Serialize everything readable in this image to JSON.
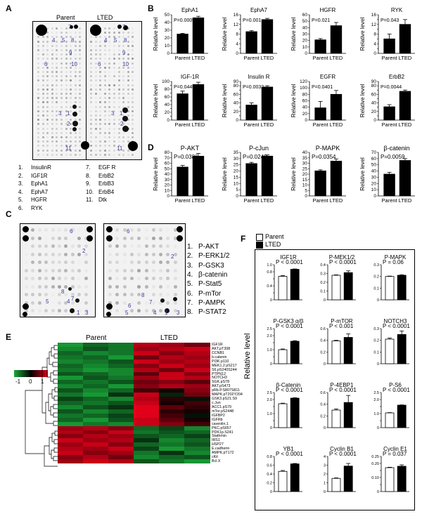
{
  "panelA": {
    "label": "A",
    "headers": [
      "Parent",
      "LTED"
    ],
    "left_numbers": [
      "7",
      "4",
      "5",
      "8",
      "9",
      "6",
      "10",
      "3",
      "1",
      "2",
      "11"
    ],
    "right_numbers": [
      "7",
      "4",
      "5",
      "8",
      "9",
      "6",
      "10",
      "3",
      "1",
      "2",
      "11"
    ],
    "key_col1": [
      "1.",
      "2.",
      "3.",
      "4.",
      "5.",
      "6."
    ],
    "key_col1_names": [
      "InsulinR",
      "IGF1R",
      "EphA1",
      "EphA7",
      "HGFR",
      "RYK"
    ],
    "key_col2": [
      "7.",
      "8.",
      "9.",
      "10.",
      "11."
    ],
    "key_col2_names": [
      "EGF R",
      "ErbB2",
      "ErbB3",
      "ErbB4",
      "Dtk"
    ]
  },
  "panelB": {
    "label": "B",
    "charts": [
      {
        "title": "EphA1",
        "p": "P=0.0009",
        "ylim": [
          0,
          50
        ],
        "ticks": [
          "0",
          "10",
          "20",
          "30",
          "40",
          "50"
        ],
        "values": [
          25,
          46
        ],
        "err": [
          1,
          2
        ]
      },
      {
        "title": "EphA7",
        "p": "P=0.001",
        "ylim": [
          0,
          16
        ],
        "ticks": [
          "0",
          "2",
          "4",
          "6",
          "8",
          "10",
          "12",
          "14",
          "16"
        ],
        "values": [
          9,
          14
        ],
        "err": [
          0.4,
          0.5
        ]
      },
      {
        "title": "HGFR",
        "p": "P=0.021",
        "ylim": [
          0,
          60
        ],
        "ticks": [
          "0",
          "10",
          "20",
          "30",
          "40",
          "50",
          "60"
        ],
        "values": [
          21,
          43
        ],
        "err": [
          2,
          5
        ]
      },
      {
        "title": "RYK",
        "p": "P=0.043",
        "ylim": [
          0,
          16
        ],
        "ticks": [
          "0",
          "2",
          "4",
          "6",
          "8",
          "10",
          "12",
          "14",
          "16"
        ],
        "values": [
          6,
          12
        ],
        "err": [
          2,
          2
        ]
      },
      {
        "title": "IGF-1R",
        "p": "P=0.0445",
        "ylim": [
          0,
          100
        ],
        "ticks": [
          "0",
          "10",
          "20",
          "30",
          "40",
          "50",
          "60",
          "70",
          "80",
          "90",
          "100"
        ],
        "values": [
          68,
          92
        ],
        "err": [
          7,
          6
        ]
      },
      {
        "title": "Insulin R",
        "p": "P=0.0032",
        "ylim": [
          0,
          90
        ],
        "ticks": [
          "0",
          "10",
          "20",
          "30",
          "40",
          "50",
          "60",
          "70",
          "80",
          "90"
        ],
        "values": [
          35,
          77
        ],
        "err": [
          5,
          3
        ]
      },
      {
        "title": "EGFR",
        "p": "P=0.0401",
        "ylim": [
          0,
          120
        ],
        "ticks": [
          "0",
          "20",
          "40",
          "60",
          "80",
          "100",
          "120"
        ],
        "values": [
          38,
          80
        ],
        "err": [
          20,
          12
        ]
      },
      {
        "title": "ErbB2",
        "p": "P=0.0044",
        "ylim": [
          0,
          90
        ],
        "ticks": [
          "0",
          "10",
          "20",
          "30",
          "40",
          "50",
          "60",
          "70",
          "80",
          "90"
        ],
        "values": [
          31,
          67
        ],
        "err": [
          5,
          3
        ]
      }
    ],
    "ylabel": "Relative level",
    "xcats": [
      "Parent",
      "LTED"
    ]
  },
  "panelC": {
    "label": "C",
    "left_numbers": [
      "6",
      "2",
      "8",
      "5",
      "4",
      "1",
      "3",
      "7"
    ],
    "right_numbers": [
      "6",
      "2",
      "8",
      "6",
      "7",
      "5",
      "4",
      "1",
      "3"
    ],
    "key_nums": [
      "1.",
      "2.",
      "3.",
      "4.",
      "5.",
      "6.",
      "7.",
      "8."
    ],
    "key_names": [
      "P-AKT",
      "P-ERK1/2",
      "P-GSK3",
      "β-catenin",
      "P-Stat5",
      "P-mTor",
      "P-AMPK",
      "P-STAT2"
    ]
  },
  "panelD": {
    "label": "D",
    "charts": [
      {
        "title": "P-AKT",
        "p": "P=0.0386",
        "ylim": [
          0,
          80
        ],
        "ticks": [
          "0",
          "10",
          "20",
          "30",
          "40",
          "50",
          "60",
          "70",
          "80"
        ],
        "values": [
          53,
          73
        ],
        "err": [
          3,
          5
        ]
      },
      {
        "title": "P-cJun",
        "p": "P=0.0249",
        "ylim": [
          0,
          35
        ],
        "ticks": [
          "0",
          "5",
          "10",
          "15",
          "20",
          "25",
          "30",
          "35"
        ],
        "values": [
          26,
          32
        ],
        "err": [
          1,
          1
        ]
      },
      {
        "title": "P-MAPK",
        "p": "P=0.0354",
        "ylim": [
          0,
          40
        ],
        "ticks": [
          "0",
          "5",
          "10",
          "15",
          "20",
          "25",
          "30",
          "35",
          "40"
        ],
        "values": [
          23,
          32
        ],
        "err": [
          1,
          2
        ]
      },
      {
        "title": "β-catenin",
        "p": "P=0.0059",
        "ylim": [
          0,
          70
        ],
        "ticks": [
          "0",
          "10",
          "20",
          "30",
          "40",
          "50",
          "60",
          "70"
        ],
        "values": [
          35,
          57
        ],
        "err": [
          3,
          3
        ]
      }
    ],
    "ylabel": "Relative level",
    "xcats": [
      "Parent",
      "LTED"
    ]
  },
  "panelE": {
    "label": "E",
    "headers": [
      "Parent",
      "LTED"
    ],
    "scale_ticks": [
      "-1",
      "0",
      "1"
    ],
    "genes": [
      "IGF1R",
      "AKT.pT308",
      "CCNB1",
      "b.catenin",
      "PI3K.p110",
      "MEK1.2.pS217",
      "S6.pS240S244",
      "PTPN12",
      "NOTCH3",
      "SGK.pS78",
      "AKT.pS473",
      "pRb.P.S807S811",
      "MAPK.pT202Y204",
      "GSK3.pS21.S9",
      "c.Jun",
      "ACC1.pS79",
      "mTor.pS2448",
      "IGFBP2",
      "IGFRb",
      "caveolin.1",
      "PKC.pS657",
      "PDK1p.S241",
      "Stathmin",
      "IRS1",
      "HSP27",
      "E.cadherin",
      "AMPK.pT172",
      "cKit",
      "Bcl.X"
    ],
    "matrix": [
      [
        -0.9,
        -0.6,
        -0.7,
        0.8,
        0.7,
        0.5
      ],
      [
        -0.8,
        -0.5,
        -0.7,
        0.7,
        0.8,
        0.9
      ],
      [
        -0.6,
        -0.8,
        -0.7,
        0.9,
        0.6,
        0.8
      ],
      [
        -0.7,
        -0.6,
        -0.9,
        0.5,
        0.8,
        0.7
      ],
      [
        -0.8,
        -0.7,
        -0.5,
        0.9,
        0.7,
        0.8
      ],
      [
        -0.6,
        -0.8,
        -0.6,
        0.6,
        0.9,
        0.7
      ],
      [
        -0.7,
        -0.9,
        -0.8,
        0.8,
        0.5,
        0.9
      ],
      [
        -0.5,
        -0.6,
        -0.8,
        0.4,
        0.9,
        0.6
      ],
      [
        -0.9,
        -0.5,
        -0.7,
        0.7,
        0.9,
        0.8
      ],
      [
        -0.6,
        -0.7,
        -0.5,
        0.5,
        0.6,
        0.4
      ],
      [
        -0.8,
        -0.6,
        -0.9,
        0.6,
        0.8,
        0.7
      ],
      [
        -0.5,
        -0.8,
        -0.6,
        0.3,
        0.1,
        0.6
      ],
      [
        -0.7,
        -0.9,
        -0.3,
        0.9,
        -0.2,
        0.5
      ],
      [
        -0.4,
        -0.6,
        -0.8,
        0.8,
        0.2,
        -0.1
      ],
      [
        -0.6,
        -0.7,
        -0.5,
        0.9,
        0.1,
        0.3
      ],
      [
        -0.8,
        -0.5,
        -0.3,
        1.0,
        0.4,
        0.2
      ],
      [
        -0.5,
        -0.8,
        -0.6,
        1.0,
        0.2,
        0.1
      ],
      [
        -0.7,
        -0.6,
        -0.4,
        1.0,
        0.3,
        -0.1
      ],
      [
        -0.6,
        -0.9,
        -0.5,
        0.9,
        0.4,
        0.1
      ],
      [
        -0.9,
        -0.7,
        -0.8,
        0.9,
        0.6,
        0.3
      ],
      [
        0.7,
        0.8,
        0.6,
        -0.6,
        -0.4,
        -0.8
      ],
      [
        0.8,
        0.6,
        0.9,
        -0.7,
        -0.5,
        -0.6
      ],
      [
        0.6,
        0.8,
        0.7,
        -0.5,
        -0.6,
        -0.4
      ],
      [
        0.9,
        0.7,
        0.8,
        -0.3,
        -0.8,
        -0.6
      ],
      [
        0.7,
        0.9,
        0.6,
        -0.6,
        -0.7,
        -0.5
      ],
      [
        0.8,
        0.7,
        0.9,
        -0.4,
        -0.9,
        -0.7
      ],
      [
        0.9,
        0.6,
        0.7,
        -0.7,
        -0.3,
        -0.8
      ],
      [
        0.6,
        0.8,
        0.5,
        -0.8,
        -0.6,
        -0.5
      ],
      [
        0.7,
        0.9,
        0.8,
        -0.5,
        -0.7,
        -0.9
      ]
    ],
    "colors": {
      "low": "#1aa83a",
      "mid": "#000000",
      "high": "#e0001a"
    }
  },
  "panelF": {
    "label": "F",
    "legend": [
      "Parent",
      "LTED"
    ],
    "ylabel": "Relative level",
    "charts": [
      {
        "title": "IGF1R",
        "p": "P < 0.0001",
        "ylim": [
          0,
          1.0
        ],
        "ticks": [
          "0",
          "0.2",
          "0.4",
          "0.6",
          "0.8",
          "1.0"
        ],
        "values": [
          0.67,
          0.87
        ],
        "err": [
          0.02,
          0.01
        ]
      },
      {
        "title": "P-MEK1/2",
        "p": "P < 0.0001",
        "ylim": [
          0,
          0.4
        ],
        "ticks": [
          "0",
          "0.1",
          "0.2",
          "0.3",
          "0.4"
        ],
        "values": [
          0.28,
          0.31
        ],
        "err": [
          0.005,
          0.02
        ]
      },
      {
        "title": "P-MAPK",
        "p": "P = 0.06",
        "ylim": [
          0,
          0.3
        ],
        "ticks": [
          "0",
          "0.1",
          "0.2",
          "0.3"
        ],
        "values": [
          0.2,
          0.21
        ],
        "err": [
          0.003,
          0.004
        ]
      },
      {
        "title": "P-GSK3 α/β",
        "p": "P < 0.0001",
        "ylim": [
          0,
          2.5
        ],
        "ticks": [
          "0",
          "0.5",
          "1.0",
          "1.5",
          "2.0",
          "2.5"
        ],
        "values": [
          1.0,
          1.6
        ],
        "err": [
          0.05,
          0.04
        ]
      },
      {
        "title": "P-mTOR",
        "p": "P < 0.001",
        "ylim": [
          0,
          0.6
        ],
        "ticks": [
          "0",
          "0.2",
          "0.4",
          "0.6"
        ],
        "values": [
          0.39,
          0.45
        ],
        "err": [
          0.01,
          0.06
        ]
      },
      {
        "title": "NOTCH3",
        "p": "P < 0.0001",
        "ylim": [
          0,
          0.3
        ],
        "ticks": [
          "0",
          "0.1",
          "0.2",
          "0.3"
        ],
        "values": [
          0.21,
          0.25
        ],
        "err": [
          0.01,
          0.03
        ]
      },
      {
        "title": "β-Catenin",
        "p": "P < 0.0001",
        "ylim": [
          0,
          2.5
        ],
        "ticks": [
          "0",
          "0.5",
          "1.0",
          "1.5",
          "2.0",
          "2.5"
        ],
        "values": [
          1.7,
          2.1
        ],
        "err": [
          0.04,
          0.03
        ]
      },
      {
        "title": "P-4EBP1",
        "p": "P < 0.0001",
        "ylim": [
          0,
          0.6
        ],
        "ticks": [
          "0",
          "0.2",
          "0.4",
          "0.6"
        ],
        "values": [
          0.3,
          0.43
        ],
        "err": [
          0.02,
          0.12
        ]
      },
      {
        "title": "P-S6",
        "p": "P < 0.0001",
        "ylim": [
          0,
          2.5
        ],
        "ticks": [
          "0",
          "0.5",
          "1.0",
          "1.5",
          "2.0",
          "2.5"
        ],
        "values": [
          1.05,
          1.6
        ],
        "err": [
          0.02,
          0.02
        ]
      },
      {
        "title": "YB1",
        "p": "P < 0.0001",
        "ylim": [
          0,
          0.8
        ],
        "ticks": [
          "0",
          "0.2",
          "0.4",
          "0.6",
          "0.8"
        ],
        "values": [
          0.46,
          0.63
        ],
        "err": [
          0.02,
          0.01
        ]
      },
      {
        "title": "Cyclin B1",
        "p": "P < 0.0001",
        "ylim": [
          0,
          4
        ],
        "ticks": [
          "0",
          "1",
          "2",
          "3",
          "4"
        ],
        "values": [
          1.5,
          2.9
        ],
        "err": [
          0.05,
          0.3
        ]
      },
      {
        "title": "Cyclin E1",
        "p": "P = 0.037",
        "ylim": [
          0,
          0.25
        ],
        "ticks": [
          "0",
          "0.05",
          "0.10",
          "0.15",
          "0.20",
          "0.25"
        ],
        "values": [
          0.17,
          0.18
        ],
        "err": [
          0.003,
          0.01
        ]
      }
    ]
  }
}
